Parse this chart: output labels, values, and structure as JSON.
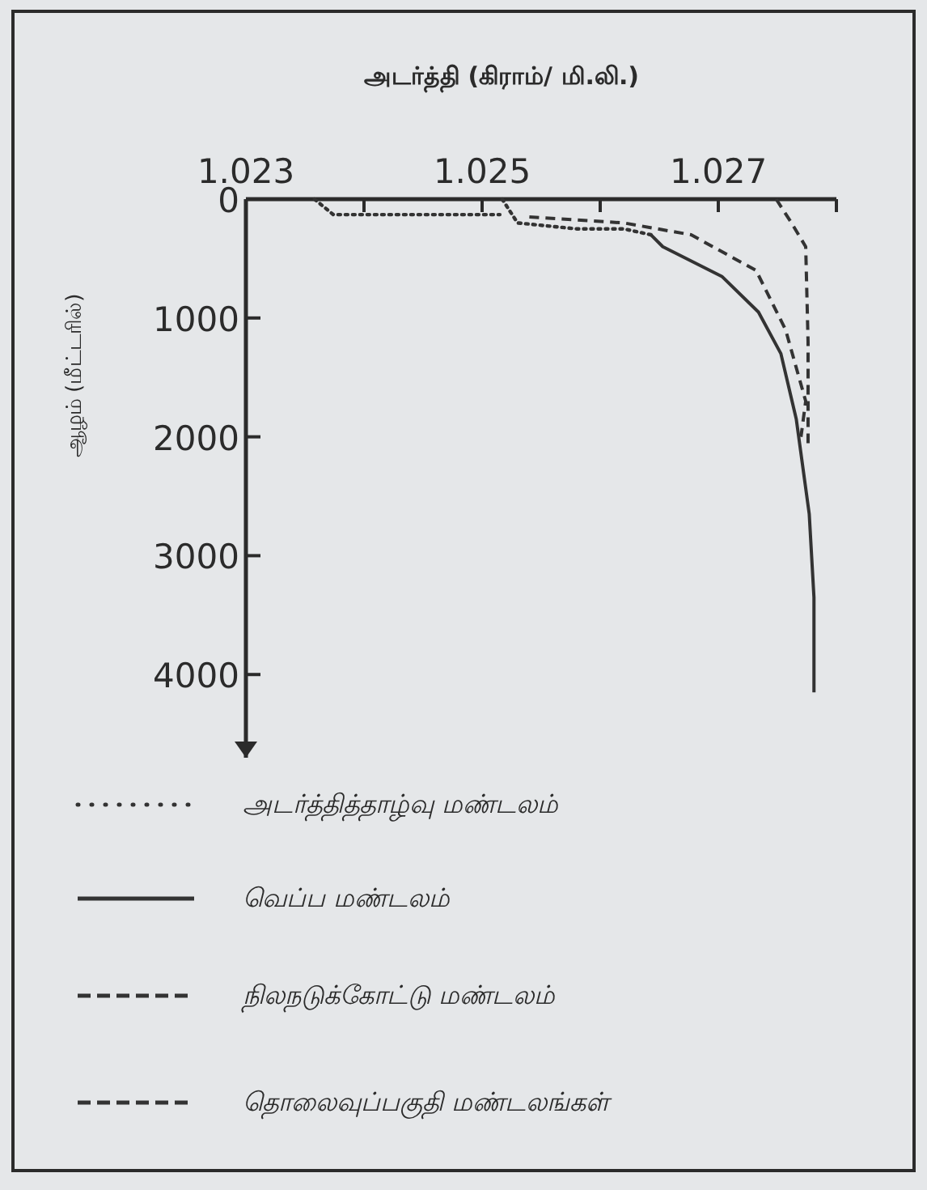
{
  "chart_data": {
    "type": "line",
    "title": "அடர்த்தி (கிராம்/ மி.லி.)",
    "ylabel": "ஆழம் (மீட்டரில்)",
    "xlim": [
      1.023,
      1.028
    ],
    "xticks": [
      1.023,
      {
        "value": 1.024,
        "label": null
      },
      1.025,
      {
        "value": 1.026,
        "label": null
      },
      1.027,
      {
        "value": 1.028,
        "label": null
      }
    ],
    "ylim": [
      4700,
      0
    ],
    "yticks": [
      0,
      1000,
      2000,
      3000,
      4000
    ],
    "legend": "bottom",
    "grid": false,
    "marker": "none",
    "series": [
      {
        "name": "அடர்த்தித்தாழ்வு மண்டலம்",
        "color": "#333333",
        "line_style": "dotted",
        "x": [
          1.02358,
          1.02374,
          1.0245,
          1.02515,
          null,
          1.02517,
          1.0253,
          1.0258,
          1.0262,
          1.02643
        ],
        "values": [
          0,
          130,
          130,
          130,
          null,
          0,
          200,
          250,
          250,
          300
        ]
      },
      {
        "name": "வெப்ப மண்டலம்",
        "color": "#333333",
        "line_style": "solid",
        "x": [
          1.02643,
          1.02653,
          1.02703,
          1.02734,
          1.02753,
          1.02766,
          1.02777,
          1.02781,
          1.02781
        ],
        "values": [
          300,
          400,
          650,
          950,
          1300,
          1850,
          2650,
          3350,
          4150
        ]
      },
      {
        "name": "நிலநடுக்கோட்டு மண்டலம்",
        "color": "#333333",
        "line_style": "dashed",
        "x": [
          1.0254,
          1.0262,
          1.02677,
          1.02732,
          1.02757,
          1.02774,
          1.0277
        ],
        "values": [
          150,
          200,
          300,
          600,
          1100,
          1700,
          2000
        ]
      },
      {
        "name": "தொலைவுப்பகுதி மண்டலங்கள்",
        "color": "#333333",
        "line_style": "dashed",
        "x": [
          1.02749,
          1.02762,
          1.02774,
          1.02776,
          1.02776
        ],
        "values": [
          0,
          200,
          400,
          1200,
          2100
        ]
      }
    ]
  }
}
